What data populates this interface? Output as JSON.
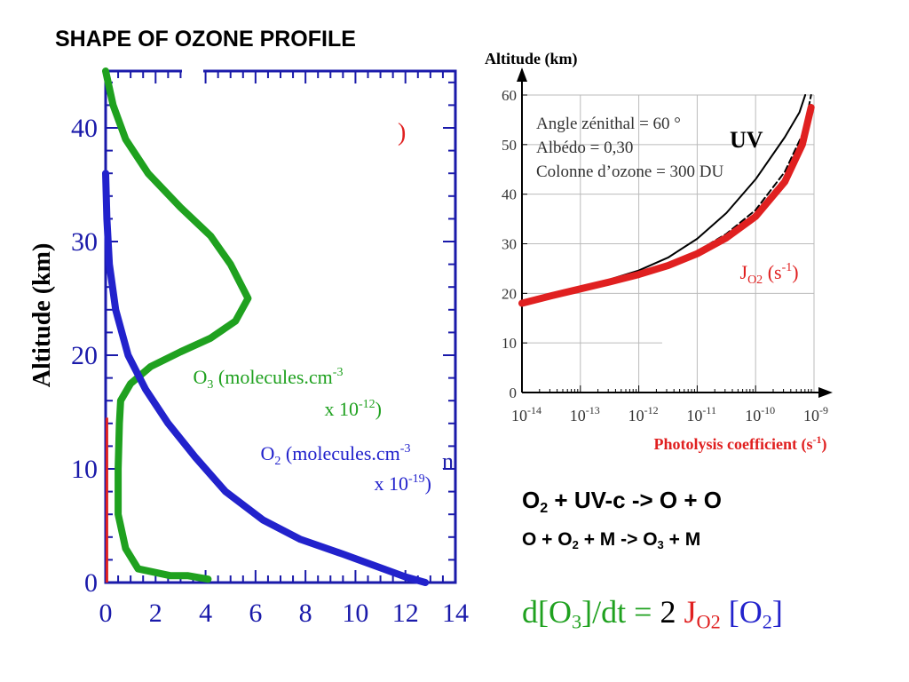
{
  "title": "SHAPE OF OZONE PROFILE",
  "colors": {
    "ozone": "#1fa11f",
    "oxygen": "#2222cc",
    "red": "#e02020",
    "axis_blue": "#1a1aaa"
  },
  "chart_data": [
    {
      "type": "line",
      "ylabel": "Altitude (km)",
      "xlim": [
        0,
        14
      ],
      "ylim": [
        0,
        45
      ],
      "x_ticks": [
        "0",
        "2",
        "4",
        "6",
        "8",
        "10",
        "12",
        "14"
      ],
      "y_ticks": [
        "0",
        "10",
        "20",
        "30",
        "40"
      ],
      "series": [
        {
          "name": "O3 (molecules.cm-3 x 10-12)",
          "label_main": "O",
          "label_sub": "3",
          "label_mid": " (molecules.cm",
          "label_sup": "-3",
          "label_line2": "x 10",
          "label_line2_sup": "-12",
          "label_line2_end": ")",
          "color": "#1fa11f",
          "points": [
            [
              0.0,
              45
            ],
            [
              0.3,
              42
            ],
            [
              0.8,
              39
            ],
            [
              1.7,
              36
            ],
            [
              3.0,
              33
            ],
            [
              4.2,
              30.5
            ],
            [
              5.0,
              28
            ],
            [
              5.7,
              25
            ],
            [
              5.2,
              23
            ],
            [
              4.2,
              21.5
            ],
            [
              3.0,
              20.3
            ],
            [
              1.8,
              19
            ],
            [
              1.0,
              17.5
            ],
            [
              0.6,
              16
            ],
            [
              0.55,
              14
            ],
            [
              0.5,
              10
            ],
            [
              0.5,
              6
            ],
            [
              0.8,
              3
            ],
            [
              1.3,
              1.2
            ],
            [
              2.6,
              0.6
            ],
            [
              3.3,
              0.6
            ],
            [
              4.1,
              0.3
            ]
          ]
        },
        {
          "name": "O2 (molecules.cm-3 x 10-19)",
          "label_main": "O",
          "label_sub": "2",
          "label_mid": " (molecules.cm",
          "label_sup": "-3",
          "label_line2": "x 10",
          "label_line2_sup": "-19",
          "label_line2_end": ")",
          "color": "#2222cc",
          "points": [
            [
              0.0,
              36
            ],
            [
              0.05,
              32
            ],
            [
              0.15,
              28
            ],
            [
              0.4,
              24
            ],
            [
              0.9,
              20
            ],
            [
              1.6,
              17
            ],
            [
              2.5,
              14
            ],
            [
              3.6,
              11
            ],
            [
              4.8,
              8
            ],
            [
              6.3,
              5.5
            ],
            [
              7.8,
              3.8
            ],
            [
              9.5,
              2.5
            ],
            [
              11.0,
              1.3
            ],
            [
              12.0,
              0.5
            ],
            [
              12.8,
              0.0
            ]
          ]
        }
      ],
      "partial_labels": [
        ")",
        "n"
      ]
    },
    {
      "type": "line",
      "title": "Altitude (km)",
      "xlabel": "Photolysis coefficient (s-1)",
      "xlabel_main": "Photolysis coefficient (s",
      "xlabel_sup": "-1",
      "xlabel_end": ")",
      "x_scale": "log",
      "xlim": [
        1e-14,
        1e-09
      ],
      "ylim": [
        0,
        60
      ],
      "x_tick_exponents": [
        "-14",
        "-13",
        "-12",
        "-11",
        "-10",
        "-9"
      ],
      "x_tick_base": "10",
      "y_ticks": [
        "0",
        "10",
        "20",
        "30",
        "40",
        "50",
        "60"
      ],
      "annotation_lines": [
        "Angle zénithal = 60 °",
        "Albédo = 0,30",
        "Colonne d’ozone = 300 DU"
      ],
      "series": [
        {
          "name": "UV",
          "color": "#000000",
          "style": "solid",
          "points": [
            [
              -14,
              18.2
            ],
            [
              -13.5,
              19.6
            ],
            [
              -13,
              21.1
            ],
            [
              -12.5,
              22.8
            ],
            [
              -12,
              24.6
            ],
            [
              -11.5,
              27.2
            ],
            [
              -11,
              31
            ],
            [
              -10.5,
              36.2
            ],
            [
              -10,
              43
            ],
            [
              -9.5,
              51.5
            ],
            [
              -9.25,
              56.5
            ],
            [
              -9.15,
              60
            ]
          ]
        },
        {
          "name": "dashed",
          "color": "#000000",
          "style": "dashed",
          "points": [
            [
              -14,
              18.2
            ],
            [
              -13.5,
              19.6
            ],
            [
              -13,
              21.0
            ],
            [
              -12.5,
              22.5
            ],
            [
              -12,
              24.0
            ],
            [
              -11.5,
              26.0
            ],
            [
              -11,
              28.5
            ],
            [
              -10.5,
              32.0
            ],
            [
              -10,
              36.8
            ],
            [
              -9.5,
              44.5
            ],
            [
              -9.2,
              52
            ],
            [
              -9.1,
              57
            ],
            [
              -9.05,
              60
            ]
          ]
        },
        {
          "name": "JO2 (s-1)",
          "label_main": "J",
          "label_sub": "O2",
          "label_mid": " (s",
          "label_sup": "-1",
          "label_end": ")",
          "color": "#e02020",
          "style": "thick",
          "points": [
            [
              -14,
              18.0
            ],
            [
              -13.5,
              19.5
            ],
            [
              -13,
              20.9
            ],
            [
              -12.5,
              22.3
            ],
            [
              -12,
              23.8
            ],
            [
              -11.5,
              25.6
            ],
            [
              -11,
              28.0
            ],
            [
              -10.5,
              31.2
            ],
            [
              -10,
              35.5
            ],
            [
              -9.5,
              42.5
            ],
            [
              -9.2,
              50
            ],
            [
              -9.05,
              57.5
            ]
          ]
        }
      ]
    }
  ],
  "equations": {
    "eq1": {
      "a": "O",
      "a_sub": "2",
      "b": " + UV-c    ->  O + O"
    },
    "eq2": {
      "a": "O + O",
      "a_sub": "2",
      "b": " + M   ->  O",
      "b_sub": "3",
      "c": " + M"
    },
    "eq3": {
      "a": "d[O",
      "a_sub": "3",
      "b": "]/dt = ",
      "c": "2 ",
      "d": "J",
      "d_sub": "O2",
      "e": " [O",
      "e_sub": "2",
      "f": "]"
    }
  }
}
